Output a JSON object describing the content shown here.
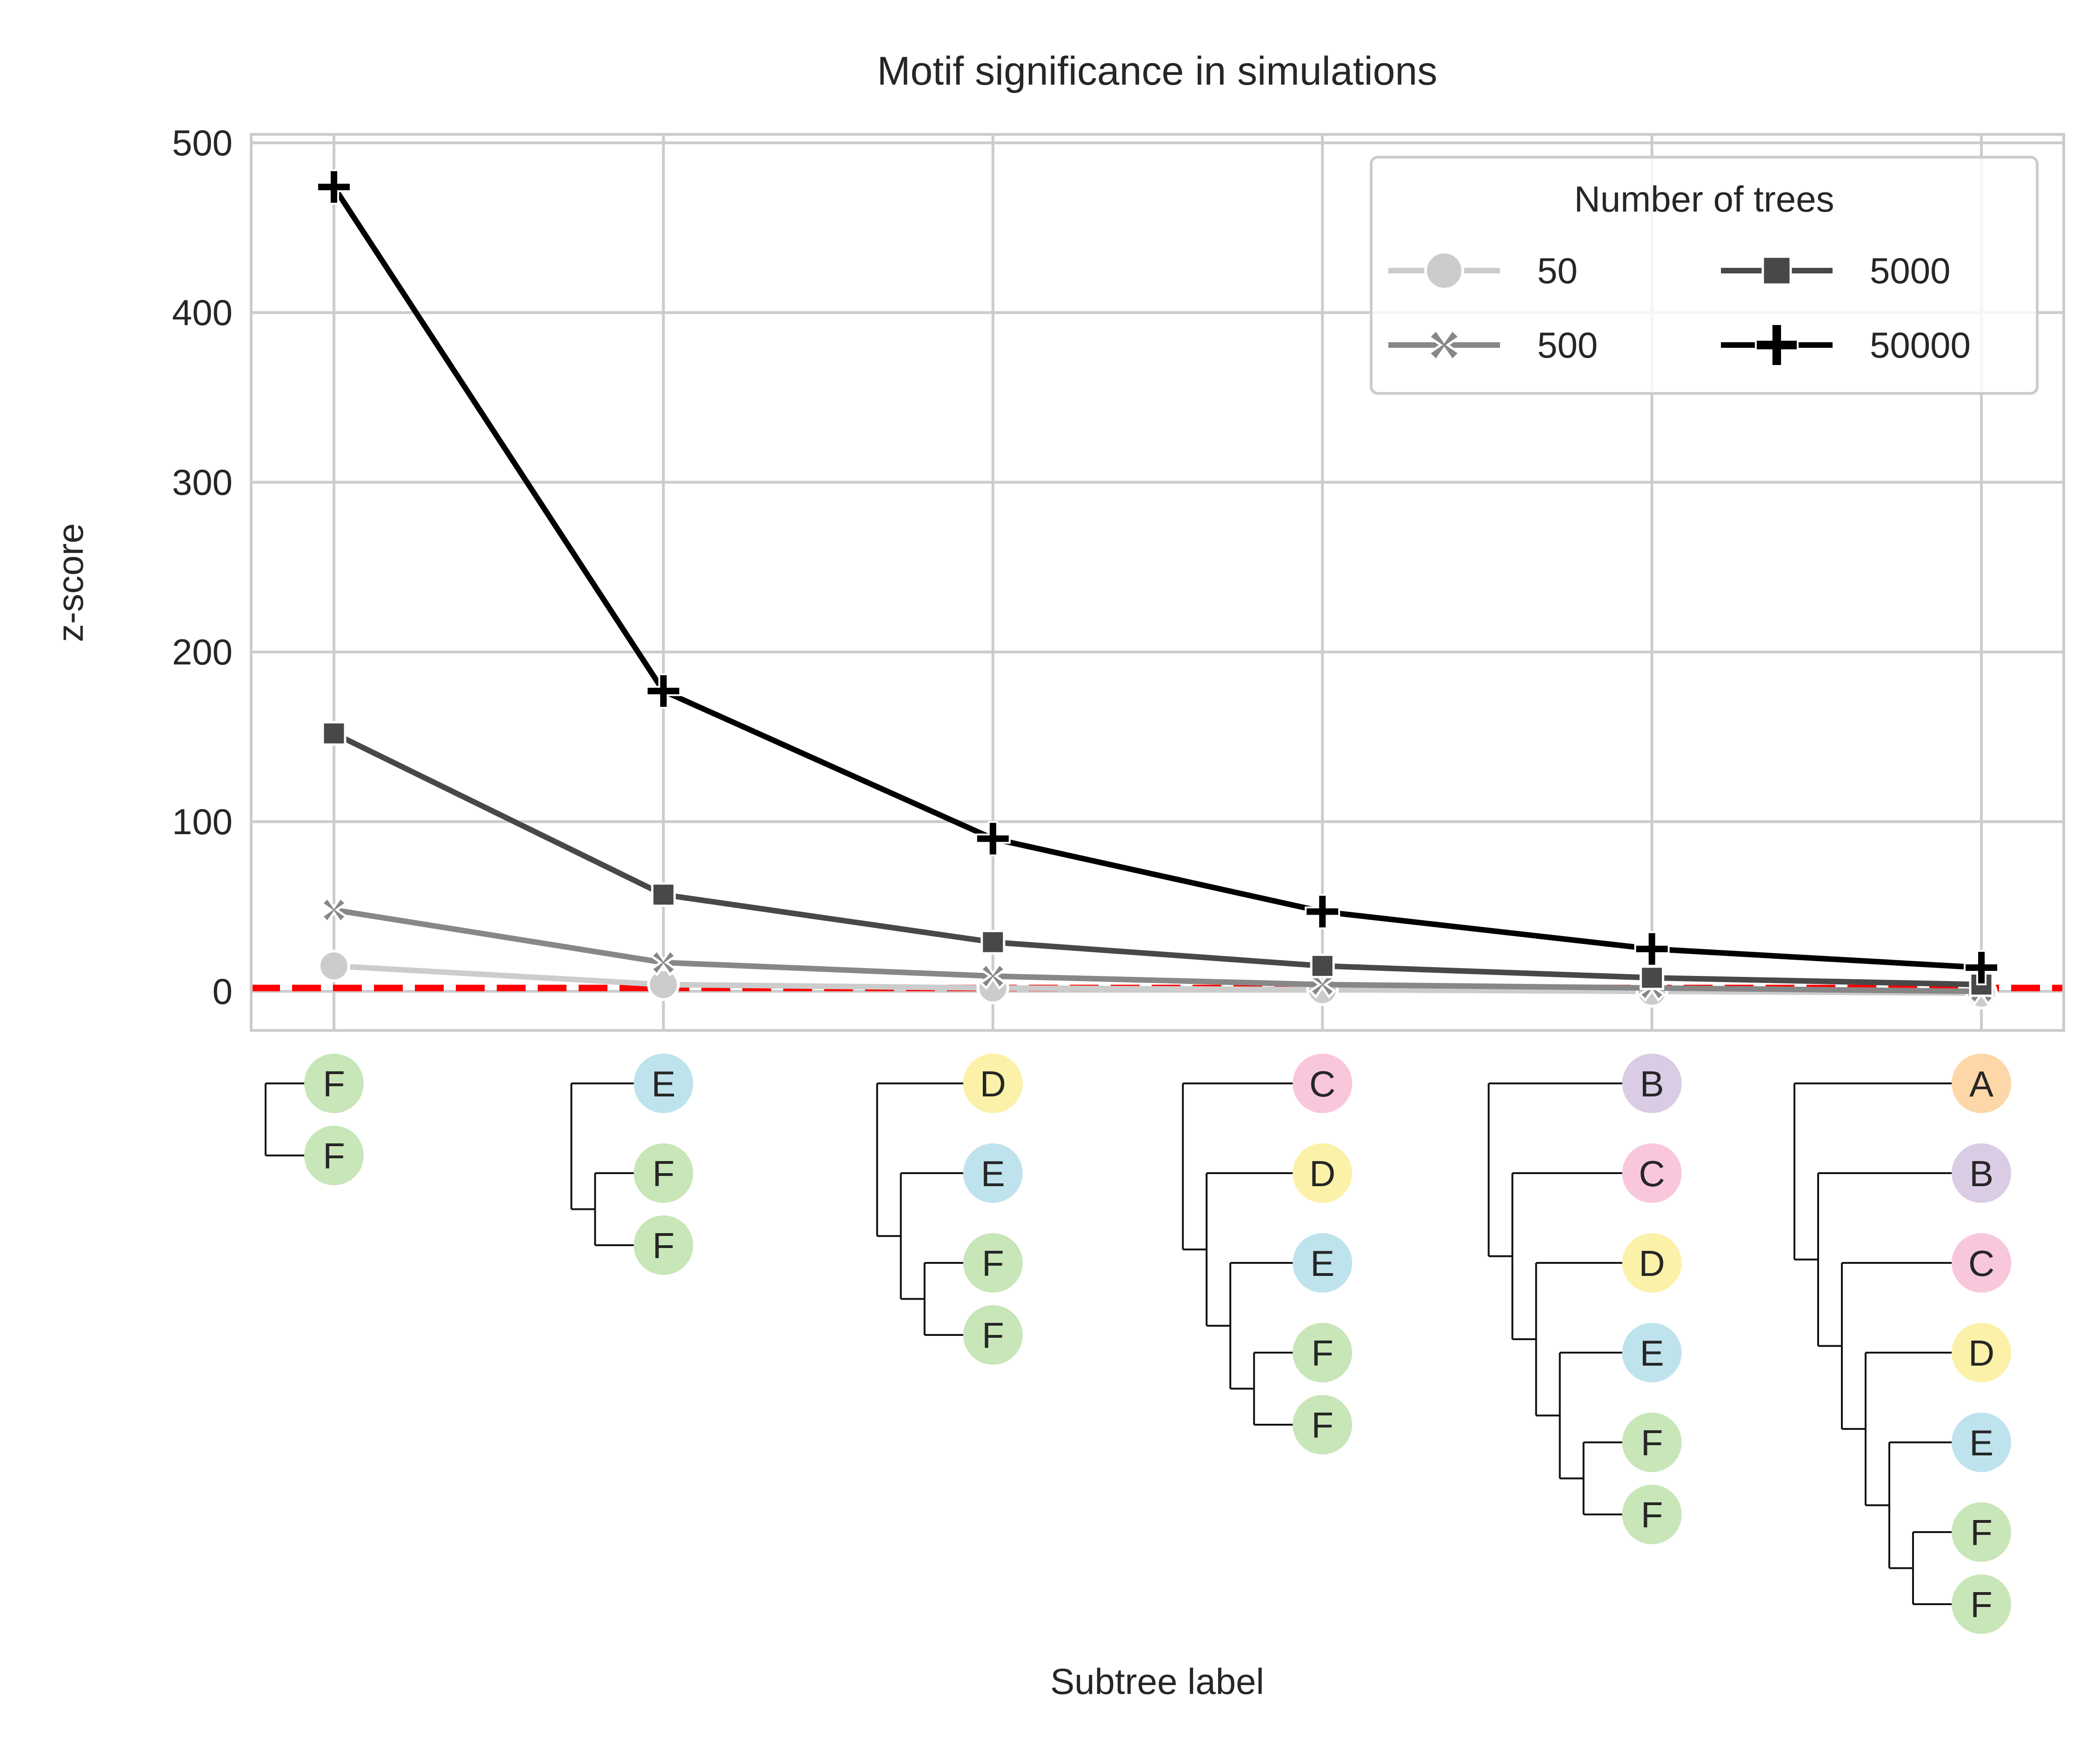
{
  "chart_data": {
    "type": "line",
    "title": "Motif significance in simulations",
    "xlabel": "Subtree label",
    "ylabel": "z-score",
    "categories": [
      "F",
      "E",
      "D",
      "C",
      "B",
      "A"
    ],
    "ylim": [
      -23,
      505
    ],
    "yticks": [
      0,
      100,
      200,
      300,
      400,
      500
    ],
    "grid": true,
    "reference_line": {
      "y": 2,
      "color": "#ff0000",
      "style": "dashed"
    },
    "legend": {
      "title": "Number of trees",
      "placement": "top-right",
      "columns": 2
    },
    "series": [
      {
        "name": "50",
        "color": "#cccccc",
        "marker": "circle",
        "values": [
          15,
          4,
          2,
          1,
          0,
          -1
        ]
      },
      {
        "name": "500",
        "color": "#878787",
        "marker": "x",
        "values": [
          48,
          17,
          9,
          4,
          2,
          0
        ]
      },
      {
        "name": "5000",
        "color": "#484848",
        "marker": "square",
        "values": [
          152,
          57,
          29,
          15,
          8,
          4
        ]
      },
      {
        "name": "50000",
        "color": "#000000",
        "marker": "plus",
        "values": [
          474,
          177,
          90,
          47,
          25,
          14
        ]
      }
    ],
    "subtree_palette": {
      "A": "#fdd7a8",
      "B": "#d9cce4",
      "C": "#f9c7dc",
      "D": "#fbf1a8",
      "E": "#bfe3ec",
      "F": "#c8e6b8"
    },
    "subtrees": [
      [
        "F",
        "F"
      ],
      [
        "E",
        "F",
        "F"
      ],
      [
        "D",
        "E",
        "F",
        "F"
      ],
      [
        "C",
        "D",
        "E",
        "F",
        "F"
      ],
      [
        "B",
        "C",
        "D",
        "E",
        "F",
        "F"
      ],
      [
        "A",
        "B",
        "C",
        "D",
        "E",
        "F",
        "F"
      ]
    ]
  }
}
